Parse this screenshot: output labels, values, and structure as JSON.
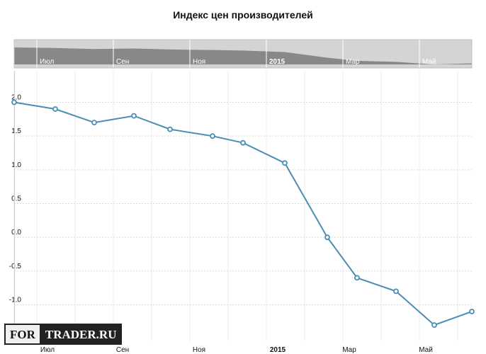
{
  "chart_data": {
    "type": "line",
    "title": "Индекс цен производителей",
    "xlabel": "",
    "ylabel": "",
    "x": [
      "2014-06",
      "2014-07",
      "2014-08",
      "2014-09",
      "2014-10",
      "2014-11",
      "2014-12",
      "2015-01",
      "2015-02",
      "2015-03",
      "2015-04",
      "2015-05",
      "2015-06"
    ],
    "values": [
      2.0,
      1.9,
      1.7,
      1.8,
      1.6,
      1.5,
      1.4,
      1.1,
      0.0,
      -0.6,
      -0.8,
      -1.3,
      -1.1
    ],
    "ylim": [
      -1.5,
      2.2
    ],
    "y_ticks": [
      "2.0",
      "1.5",
      "1.0",
      "0.5",
      "0.0",
      "-0.5",
      "-1.0"
    ],
    "x_ticks": [
      "Июл",
      "Сен",
      "Ноя",
      "2015",
      "Мар",
      "Май"
    ],
    "grid": true,
    "line_color": "#4a8db5",
    "navigator": true
  },
  "logo": {
    "part1": "FOR",
    "part2": "TRADER.RU"
  }
}
